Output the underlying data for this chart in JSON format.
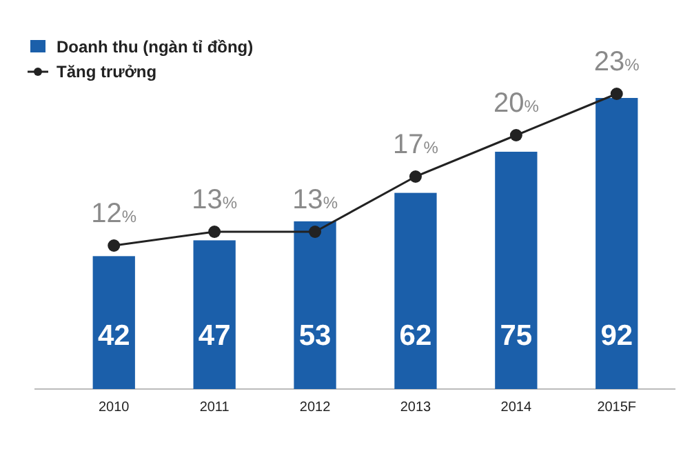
{
  "chart_data": {
    "type": "bar",
    "categories": [
      "2010",
      "2011",
      "2012",
      "2013",
      "2014",
      "2015F"
    ],
    "series": [
      {
        "name": "Doanh thu (ngàn tỉ đồng)",
        "color": "#1b5faa",
        "values": [
          42,
          47,
          53,
          62,
          75,
          92
        ]
      },
      {
        "name": "Tăng trưởng",
        "type": "line",
        "axis": "y2",
        "color": "#222222",
        "values": [
          12,
          13,
          13,
          17,
          20,
          23
        ],
        "value_labels": [
          "12%",
          "13%",
          "13%",
          "17%",
          "20%",
          "23%"
        ]
      }
    ],
    "data_labels": true,
    "legend": "top left",
    "marker": "circle",
    "line_style": "solid"
  }
}
